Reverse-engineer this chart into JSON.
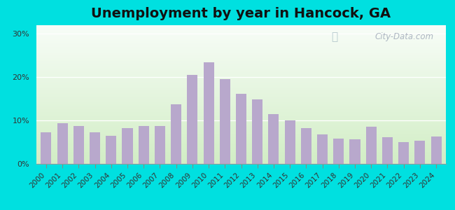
{
  "title": "Unemployment by year in Hancock, GA",
  "years": [
    2000,
    2001,
    2002,
    2003,
    2004,
    2005,
    2006,
    2007,
    2008,
    2009,
    2010,
    2011,
    2012,
    2013,
    2014,
    2015,
    2016,
    2017,
    2018,
    2019,
    2020,
    2021,
    2022,
    2023,
    2024
  ],
  "values": [
    7.2,
    9.3,
    8.8,
    7.2,
    6.5,
    8.3,
    8.8,
    8.8,
    13.8,
    20.5,
    23.5,
    19.5,
    16.2,
    14.8,
    11.5,
    10.0,
    8.2,
    6.8,
    5.8,
    5.7,
    8.5,
    6.2,
    5.0,
    5.3,
    6.3
  ],
  "bar_color": "#b8a8cc",
  "yticks": [
    0,
    10,
    20,
    30
  ],
  "ytick_labels": [
    "0%",
    "10%",
    "20%",
    "30%"
  ],
  "ylim": [
    0,
    32
  ],
  "bg_outer": "#00e0e0",
  "watermark": "City-Data.com",
  "title_fontsize": 14,
  "tick_fontsize": 8
}
